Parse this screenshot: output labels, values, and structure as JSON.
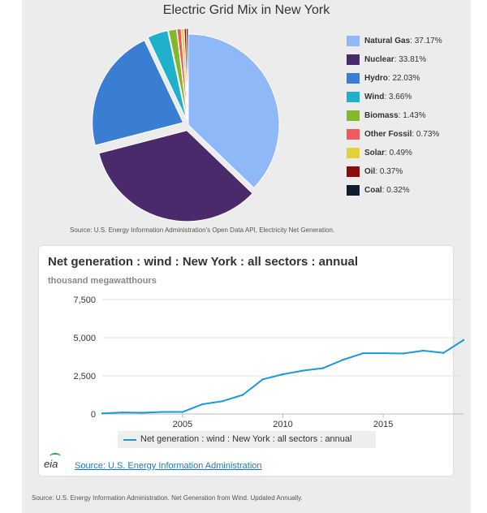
{
  "pie_chart": {
    "title": "Electric Grid Mix in New York",
    "source": "Source: U.S. Energy Information Administration's Open Data API, Electricity Net Generation."
  },
  "line_chart": {
    "title": "Net generation : wind : New York : all sectors : annual",
    "units": "thousand megawatthours",
    "legend_label": "Net generation : wind : New York : all sectors : annual",
    "source_link": "Source: U.S. Energy Information Administration",
    "logo_text": "eia"
  },
  "footer": {
    "source": "Source: U.S. Energy Information Administration. Net Generation from Wind. Updated Annually."
  },
  "colors": {
    "natural_gas": "#8fb8f8",
    "nuclear": "#4a2a6b",
    "hydro": "#3a7ed4",
    "wind": "#1fb0cc",
    "biomass": "#84b82c",
    "other_fossil": "#ef5a5a",
    "solar": "#e6cf3c",
    "oil": "#8a0c0c",
    "coal": "#101c30",
    "wind_line": "#1a9ad6"
  },
  "chart_data": [
    {
      "type": "pie",
      "title": "Electric Grid Mix in New York",
      "slices": [
        {
          "name": "Natural Gas",
          "value": 37.17,
          "label": "37.17%",
          "color": "#8fb8f8"
        },
        {
          "name": "Nuclear",
          "value": 33.81,
          "label": "33.81%",
          "color": "#4a2a6b"
        },
        {
          "name": "Hydro",
          "value": 22.03,
          "label": "22.03%",
          "color": "#3a7ed4"
        },
        {
          "name": "Wind",
          "value": 3.66,
          "label": "3.66%",
          "color": "#1fb0cc"
        },
        {
          "name": "Biomass",
          "value": 1.43,
          "label": "1.43%",
          "color": "#84b82c"
        },
        {
          "name": "Other Fossil",
          "value": 0.73,
          "label": "0.73%",
          "color": "#ef5a5a"
        },
        {
          "name": "Solar",
          "value": 0.49,
          "label": "0.49%",
          "color": "#e6cf3c"
        },
        {
          "name": "Oil",
          "value": 0.37,
          "label": "0.37%",
          "color": "#8a0c0c"
        },
        {
          "name": "Coal",
          "value": 0.32,
          "label": "0.32%",
          "color": "#101c30"
        }
      ],
      "legend_position": "right"
    },
    {
      "type": "line",
      "title": "Net generation : wind : New York : all sectors : annual",
      "ylabel": "thousand megawatthours",
      "x": [
        2001,
        2002,
        2003,
        2004,
        2005,
        2006,
        2007,
        2008,
        2009,
        2010,
        2011,
        2012,
        2013,
        2014,
        2015,
        2016,
        2017,
        2018,
        2019
      ],
      "series": [
        {
          "name": "Net generation : wind : New York : all sectors : annual",
          "values": [
            40,
            100,
            80,
            130,
            130,
            640,
            840,
            1250,
            2270,
            2600,
            2840,
            3000,
            3550,
            3980,
            3980,
            3960,
            4150,
            4000,
            4840
          ]
        }
      ],
      "xticks": [
        "2005",
        "2010",
        "2015"
      ],
      "yticks": [
        "0",
        "2,500",
        "5,000",
        "7,500"
      ],
      "ylim": [
        0,
        7500
      ],
      "xlim": [
        2001,
        2019
      ],
      "grid": true,
      "legend_position": "bottom"
    }
  ]
}
